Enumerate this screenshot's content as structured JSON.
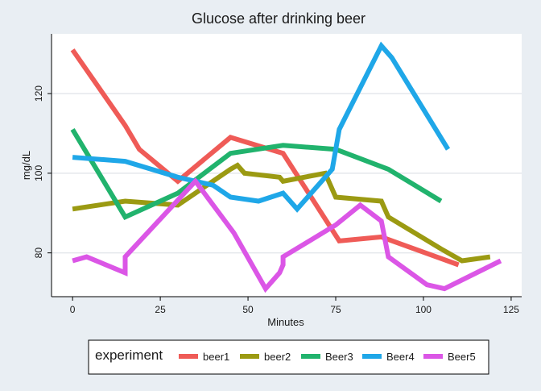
{
  "chart_data": {
    "type": "line",
    "title": "Glucose after drinking beer",
    "xlabel": "Minutes",
    "ylabel": "mg/dL",
    "xlim": [
      -6,
      128
    ],
    "ylim": [
      69,
      135
    ],
    "xticks": [
      0,
      25,
      50,
      75,
      100,
      125
    ],
    "yticks": [
      80,
      100,
      120
    ],
    "grid": "horizontal",
    "legend": {
      "title": "experiment",
      "placement": "bottom"
    },
    "series": [
      {
        "name": "beer1",
        "color": "#ef5b57",
        "points": [
          [
            0,
            131
          ],
          [
            15,
            112
          ],
          [
            19,
            106
          ],
          [
            30,
            98
          ],
          [
            45,
            109
          ],
          [
            60,
            105
          ],
          [
            76,
            83
          ],
          [
            88,
            84
          ],
          [
            110,
            77
          ]
        ]
      },
      {
        "name": "beer2",
        "color": "#9b9a12",
        "points": [
          [
            0,
            91
          ],
          [
            15,
            93
          ],
          [
            30,
            92
          ],
          [
            45,
            101
          ],
          [
            47,
            102
          ],
          [
            49,
            100
          ],
          [
            59,
            99
          ],
          [
            60,
            98
          ],
          [
            72,
            100
          ],
          [
            75,
            94
          ],
          [
            88,
            93
          ],
          [
            90,
            89
          ],
          [
            105,
            81
          ],
          [
            111,
            78
          ],
          [
            119,
            79
          ]
        ]
      },
      {
        "name": "Beer3",
        "color": "#21b36d",
        "points": [
          [
            0,
            111
          ],
          [
            15,
            89
          ],
          [
            30,
            95
          ],
          [
            45,
            105
          ],
          [
            60,
            107
          ],
          [
            75,
            106
          ],
          [
            90,
            101
          ],
          [
            105,
            93
          ]
        ]
      },
      {
        "name": "Beer4",
        "color": "#1fa7e8",
        "points": [
          [
            0,
            104
          ],
          [
            15,
            103
          ],
          [
            30,
            99
          ],
          [
            40,
            97
          ],
          [
            45,
            94
          ],
          [
            53,
            93
          ],
          [
            60,
            95
          ],
          [
            64,
            91
          ],
          [
            74,
            101
          ],
          [
            76,
            111
          ],
          [
            88,
            132
          ],
          [
            91,
            129
          ],
          [
            107,
            106
          ]
        ]
      },
      {
        "name": "Beer5",
        "color": "#db56e6",
        "points": [
          [
            0,
            78
          ],
          [
            4,
            79
          ],
          [
            15,
            75
          ],
          [
            15,
            79
          ],
          [
            35,
            98
          ],
          [
            46,
            85
          ],
          [
            55,
            71
          ],
          [
            59,
            75
          ],
          [
            60,
            77
          ],
          [
            60,
            79
          ],
          [
            75,
            87
          ],
          [
            82,
            92
          ],
          [
            88,
            88
          ],
          [
            90,
            79
          ],
          [
            101,
            72
          ],
          [
            106,
            71
          ],
          [
            122,
            78
          ]
        ]
      }
    ]
  }
}
